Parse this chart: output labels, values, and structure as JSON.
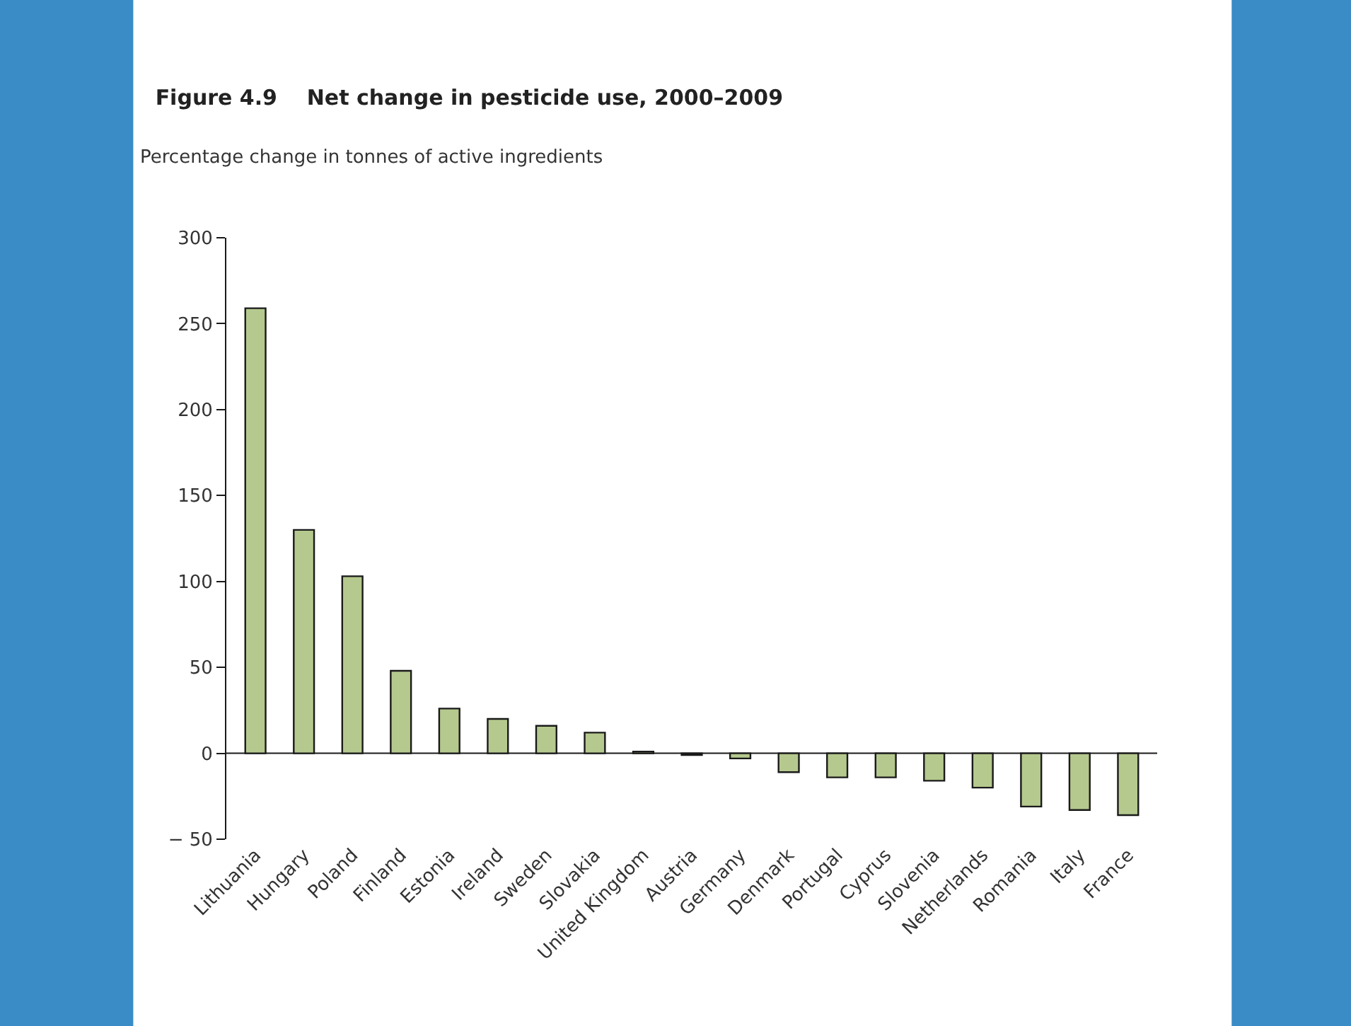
{
  "chart_data": {
    "type": "bar",
    "title": "Figure 4.9    Net change in pesticide use, 2000–2009",
    "ylabel": "Percentage change in tonnes of active ingredients",
    "categories": [
      "Lithuania",
      "Hungary",
      "Poland",
      "Finland",
      "Estonia",
      "Ireland",
      "Sweden",
      "Slovakia",
      "United Kingdom",
      "Austria",
      "Germany",
      "Denmark",
      "Portugal",
      "Cyprus",
      "Slovenia",
      "Netherlands",
      "Romania",
      "Italy",
      "France"
    ],
    "values": [
      259,
      130,
      103,
      48,
      26,
      20,
      16,
      12,
      1,
      -1,
      -3,
      -11,
      -14,
      -14,
      -16,
      -20,
      -31,
      -33,
      -36
    ],
    "color": "#b5c98e",
    "ylim": [
      -50,
      300
    ],
    "yticks": [
      {
        "value": -50,
        "label": "− 50"
      },
      0,
      50,
      100,
      150,
      200,
      250,
      300
    ],
    "ref_lines": [
      {
        "axis": "y",
        "value": 0,
        "color": "#1a1a1a"
      }
    ],
    "legend": false
  }
}
